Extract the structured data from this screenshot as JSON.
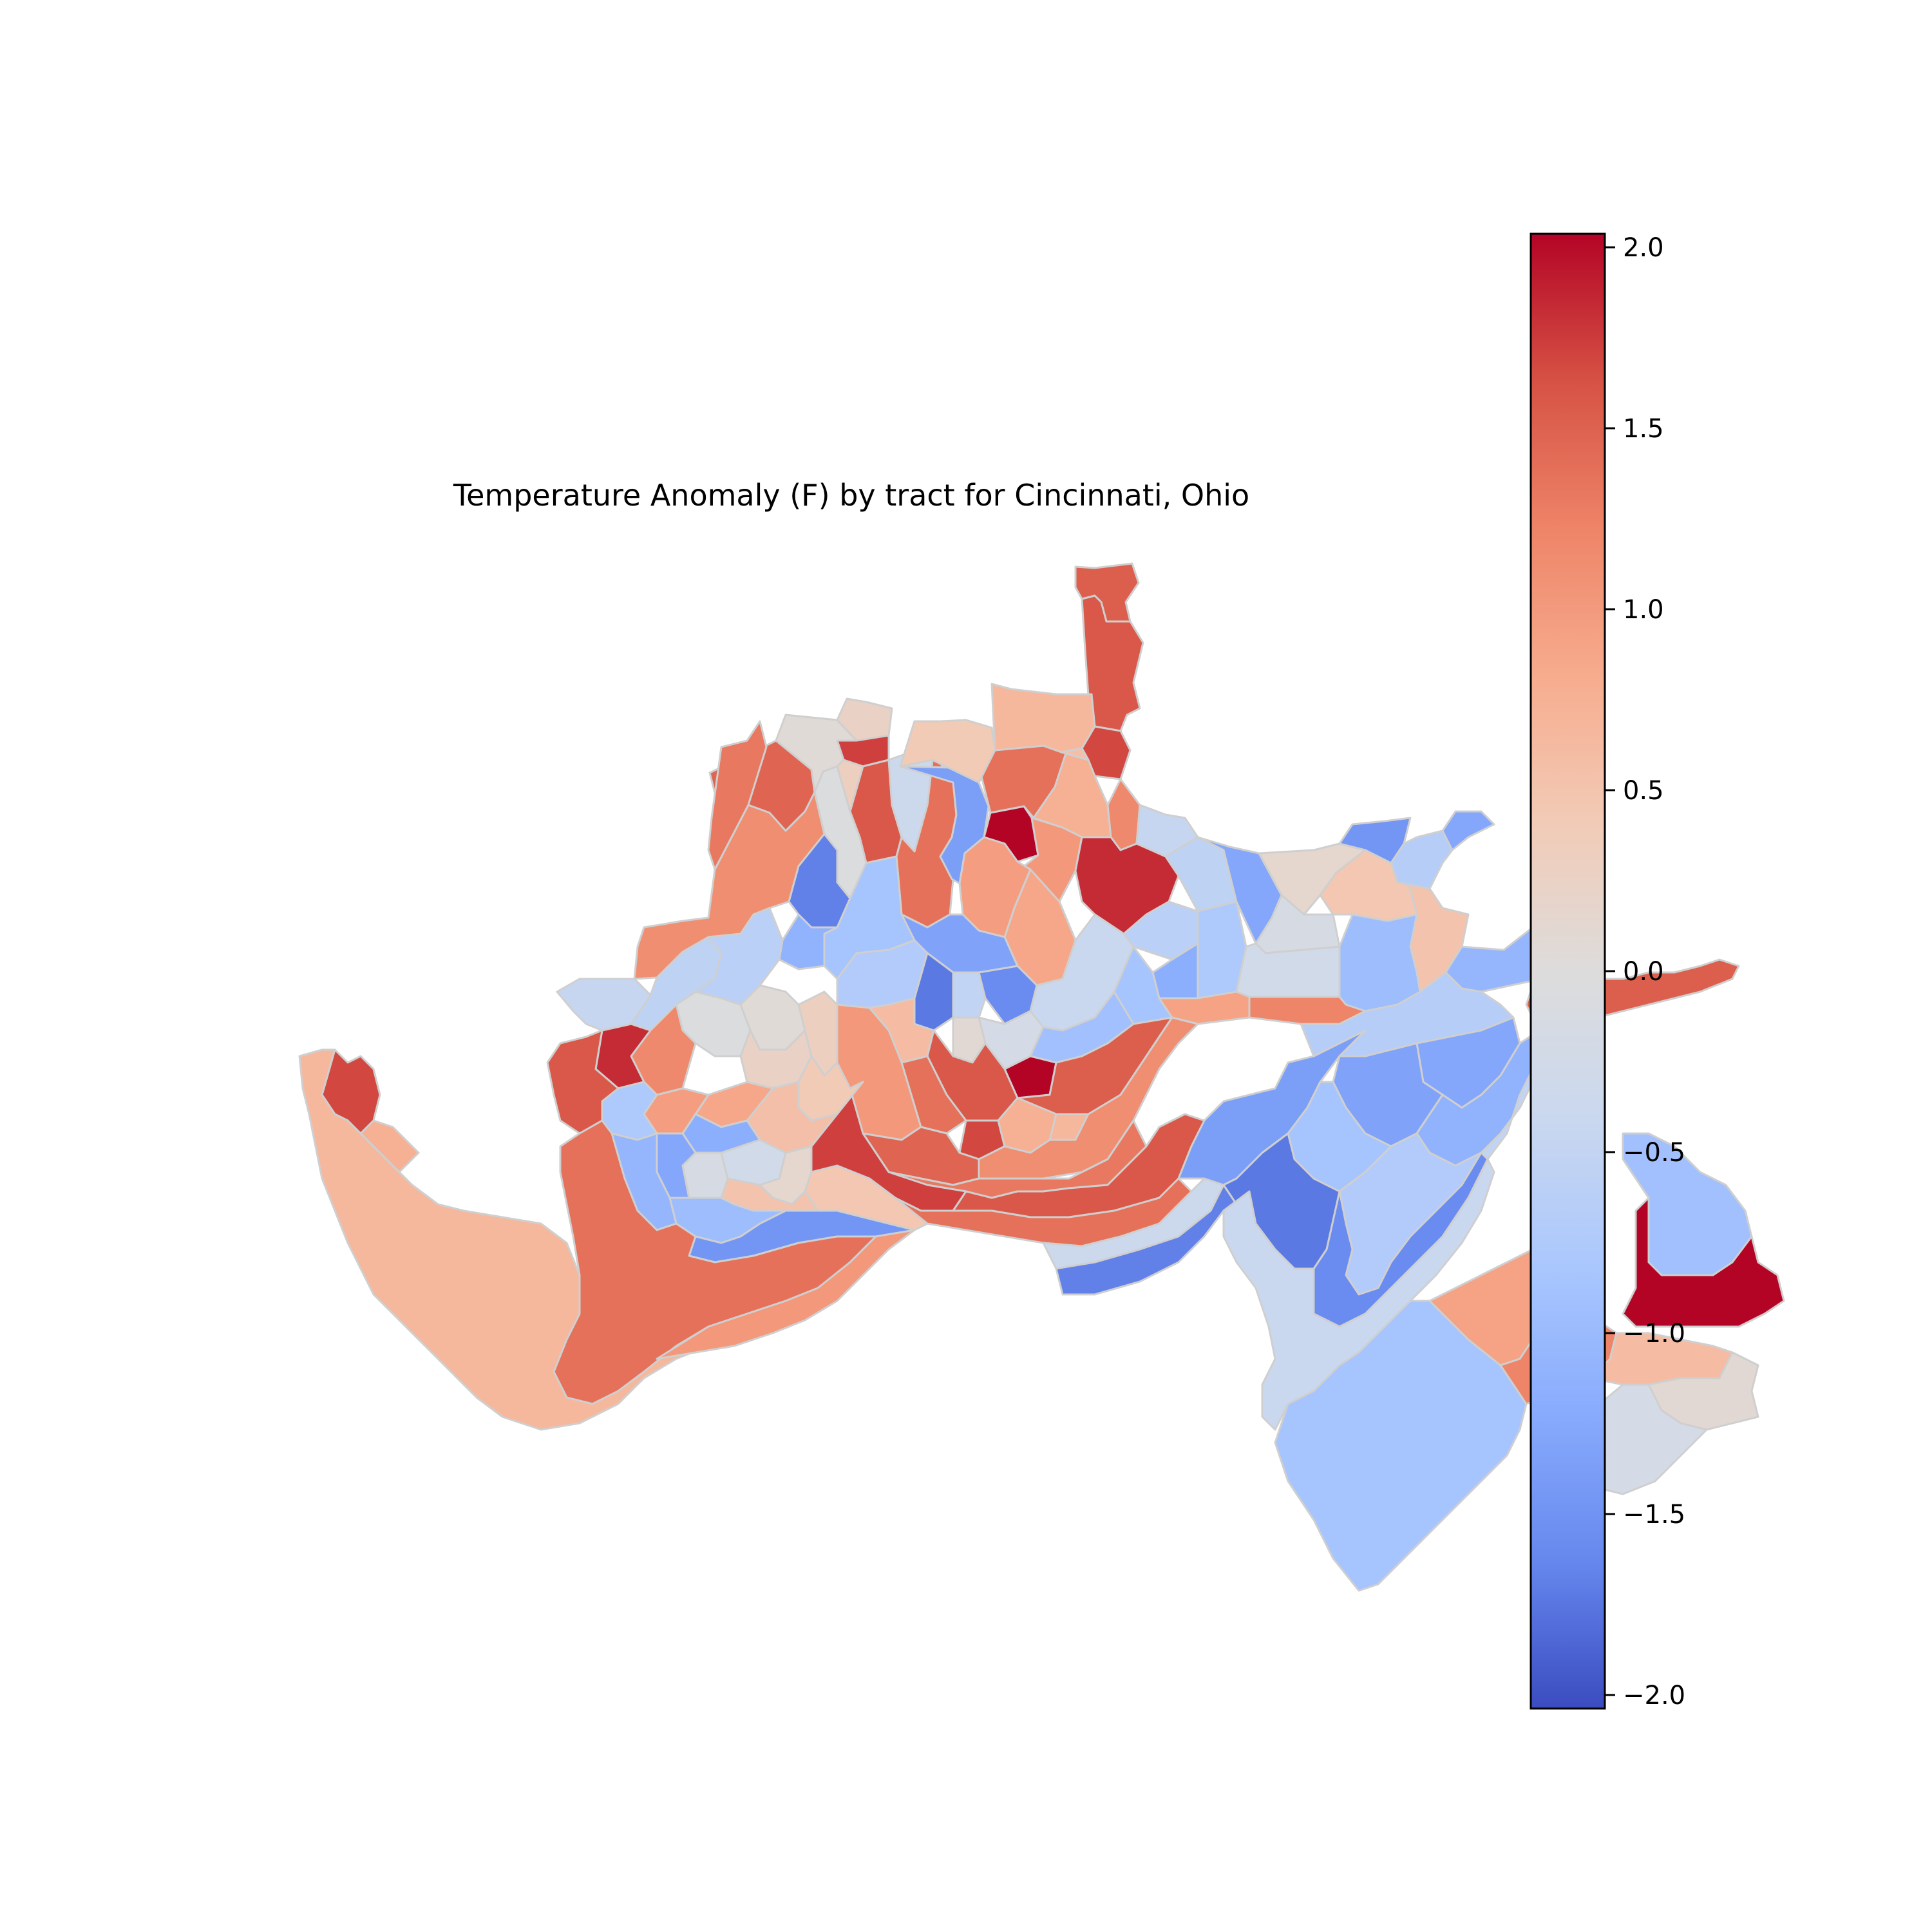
{
  "title": "Temperature Anomaly (F) by tract for Cincinnati, Ohio",
  "colorbar": {
    "colormap": "coolwarm",
    "min": -2.0,
    "max": 2.0,
    "ticks": [
      {
        "value": 2.0,
        "label": "2.0"
      },
      {
        "value": 1.5,
        "label": "1.5"
      },
      {
        "value": 1.0,
        "label": "1.0"
      },
      {
        "value": 0.5,
        "label": "0.5"
      },
      {
        "value": 0.0,
        "label": "0.0"
      },
      {
        "value": -0.5,
        "label": "−0.5"
      },
      {
        "value": -1.0,
        "label": "−1.0"
      },
      {
        "value": -1.5,
        "label": "−1.5"
      },
      {
        "value": -2.0,
        "label": "−2.0"
      }
    ],
    "stops": [
      "#3b4cc0",
      "#6688ee",
      "#88abfd",
      "#aac7fd",
      "#cad8ef",
      "#dddcdc",
      "#f2cbb7",
      "#f7ac8e",
      "#ee8468",
      "#d65244",
      "#b40426"
    ]
  },
  "tract_values": [
    2.05,
    1.5,
    1.55,
    1.35,
    1.65,
    0.65,
    0.75,
    1.0,
    1.45,
    1.1,
    1.3,
    1.7,
    1.55,
    1.35,
    -0.35,
    -1.35,
    -1.65,
    -0.05,
    0.05,
    0.25,
    0.3,
    0.4,
    0.55,
    0.85,
    0.95,
    1.15,
    1.8,
    -0.45,
    -0.55,
    -0.6,
    -0.75,
    -1.15,
    -1.25,
    -0.15,
    -0.25,
    0.15,
    0.45,
    0.5,
    -0.95,
    -1.05,
    -1.45,
    -0.65,
    -1.25,
    -1.3,
    -0.85,
    -1.1,
    -0.7,
    -0.5,
    -1.7,
    -1.55,
    -0.4,
    -0.85,
    0.9,
    1.2,
    0.6,
    0.1,
    -0.2,
    -0.9
  ]
}
